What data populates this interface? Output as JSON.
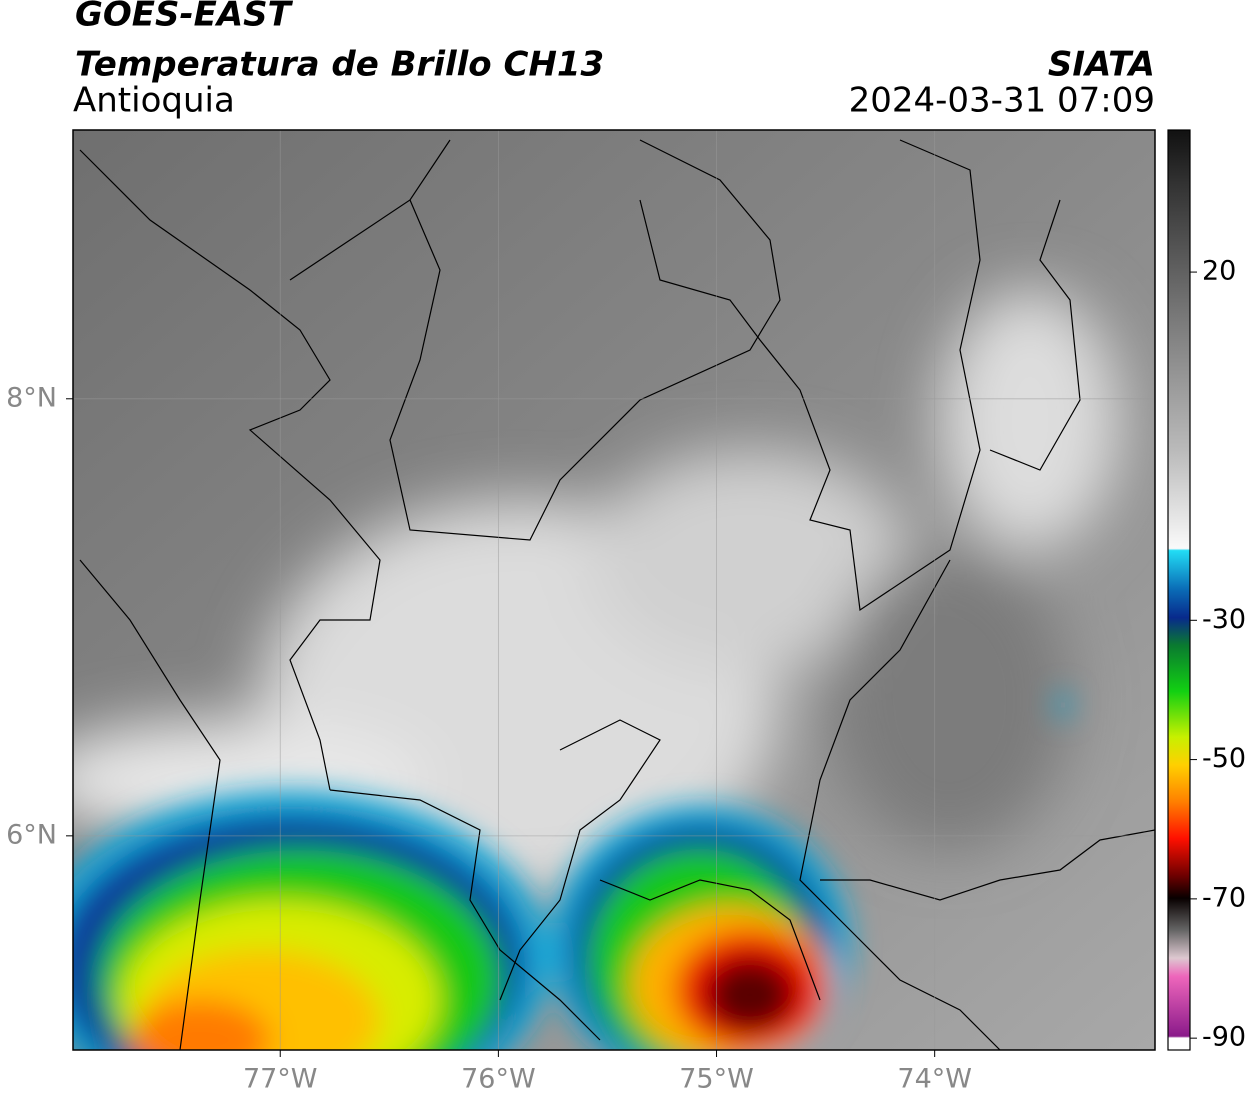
{
  "chart_data": {
    "type": "map",
    "title": "GOES-EAST",
    "subtitle": "Temperatura de Brillo CH13",
    "region": "Antioquia",
    "source": "SIATA",
    "timestamp": "2024-03-31 07:09",
    "xlim": [
      -77.95,
      -72.99
    ],
    "ylim": [
      5.02,
      9.23
    ],
    "xticks": [
      {
        "value": -77,
        "label": "77°W"
      },
      {
        "value": -76,
        "label": "76°W"
      },
      {
        "value": -75,
        "label": "75°W"
      },
      {
        "value": -74,
        "label": "74°W"
      }
    ],
    "yticks": [
      {
        "value": 8,
        "label": "8°N"
      },
      {
        "value": 6,
        "label": "6°N"
      }
    ],
    "grid": true,
    "colorbar": {
      "lim": [
        -91.7,
        40.4
      ],
      "ticks": [
        20,
        -30,
        -50,
        -70,
        -90
      ]
    }
  }
}
